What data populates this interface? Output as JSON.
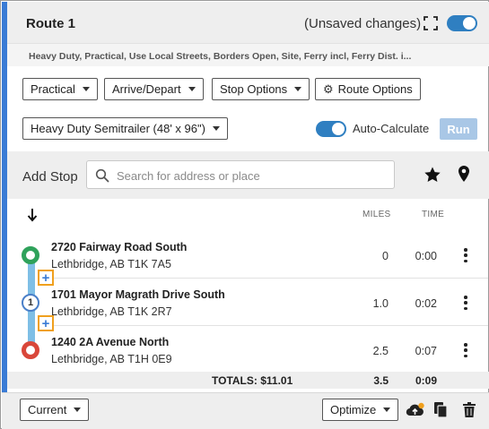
{
  "header": {
    "title": "Route 1",
    "status": "(Unsaved changes)"
  },
  "options_summary": "Heavy Duty, Practical, Use Local Streets, Borders Open, Site, Ferry incl, Ferry Dist. i...",
  "toolbar": {
    "routing_type": "Practical",
    "arrive_depart": "Arrive/Depart",
    "stop_options": "Stop Options",
    "route_options": "Route Options"
  },
  "vehicle": {
    "profile": "Heavy Duty Semitrailer (48' x 96\")"
  },
  "auto_calculate": {
    "label": "Auto-Calculate",
    "enabled": true
  },
  "run_label": "Run",
  "add_stop": {
    "label": "Add Stop",
    "placeholder": "Search for address or place"
  },
  "columns": {
    "miles": "MILES",
    "time": "TIME"
  },
  "stops": [
    {
      "marker": "",
      "name": "2720 Fairway Road South",
      "address": "Lethbridge, AB T1K 7A5",
      "miles": "0",
      "time": "0:00"
    },
    {
      "marker": "1",
      "name": "1701 Mayor Magrath Drive South",
      "address": "Lethbridge, AB T1K 2R7",
      "miles": "1.0",
      "time": "0:02"
    },
    {
      "marker": "",
      "name": "1240 2A Avenue North",
      "address": "Lethbridge, AB T1H 0E9",
      "miles": "2.5",
      "time": "0:07"
    }
  ],
  "insert_symbol": "+",
  "totals": {
    "label": "TOTALS: $11.01",
    "miles": "3.5",
    "time": "0:09"
  },
  "footer": {
    "view": "Current",
    "optimize": "Optimize"
  },
  "colors": {
    "accent": "#3a7bd5",
    "start": "#2fa25b",
    "end": "#d9473a",
    "insert_highlight": "#f0a01e",
    "route_line": "#7fbfe6"
  },
  "icons": [
    "expand-icon",
    "gear-icon",
    "search-icon",
    "star-icon",
    "map-pin-icon",
    "sort-down-icon",
    "kebab-menu-icon",
    "cloud-upload-icon",
    "copy-icon",
    "trash-icon"
  ]
}
